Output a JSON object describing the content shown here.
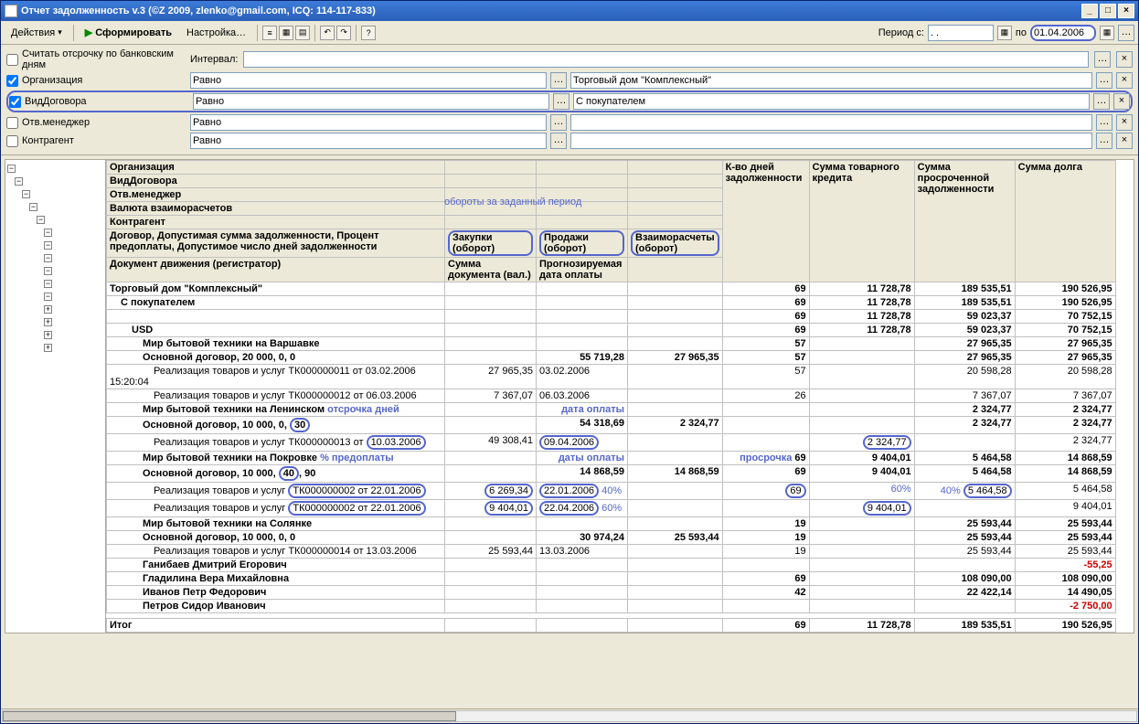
{
  "window": {
    "title": "Отчет задолженность v.3 (©Z 2009, zlenko@gmail.com, ICQ: 114-117-833)"
  },
  "toolbar": {
    "actions": "Действия",
    "form": "Сформировать",
    "settings": "Настройка…",
    "period_label": "Период с:",
    "period_from": ". .",
    "period_to": "01.04.2006"
  },
  "filters": {
    "bankdays": "Считать отсрочку по банковским дням",
    "interval": "Интервал:",
    "org": {
      "label": "Организация",
      "op": "Равно",
      "val": "Торговый дом \"Комплексный\""
    },
    "contract": {
      "label": "ВидДоговора",
      "op": "Равно",
      "val": "С покупателем"
    },
    "manager": {
      "label": "Отв.менеджер",
      "op": "Равно",
      "val": ""
    },
    "counter": {
      "label": "Контрагент",
      "op": "Равно",
      "val": ""
    }
  },
  "headers": {
    "h1": "Организация",
    "h2": "ВидДоговора",
    "h3": "Отв.менеджер",
    "h4": "Валюта взаиморасчетов",
    "h5": "Контрагент",
    "h6": "Договор, Допустимая сумма задолженности, Процент предоплаты, Допустимое число дней задолженности",
    "h7": "Документ движения (регистратор)",
    "c1": "Закупки (оборот)",
    "c2": "Продажи (оборот)",
    "c3": "Взаиморасчеты (оборот)",
    "c4": "Сумма документа (вал.)",
    "c5": "Прогнозируемая дата оплаты",
    "d1": "К-во дней задолженности",
    "d2": "Сумма товарного кредита",
    "d3": "Сумма просроченной задолженности",
    "d4": "Сумма долга"
  },
  "annotations": {
    "oboroty": "обороты за заданный период",
    "otsrochka": "отсрочка дней",
    "data_oplaty": "дата оплаты",
    "daty_oplaty": "даты оплаты",
    "predoplata": "% предоплаты",
    "prosrochka": "просрочка",
    "p40": "40%",
    "p60": "60%",
    "p60b": "60%",
    "p40b": "40%"
  },
  "rows": [
    {
      "ind": 0,
      "b": 1,
      "desc": "Торговый дом \"Комплексный\"",
      "d": "69",
      "s": "11 728,78",
      "p": "189 535,51",
      "t": "190 526,95"
    },
    {
      "ind": 1,
      "b": 1,
      "desc": "С покупателем",
      "d": "69",
      "s": "11 728,78",
      "p": "189 535,51",
      "t": "190 526,95"
    },
    {
      "ind": 2,
      "b": 1,
      "desc": "",
      "d": "69",
      "s": "11 728,78",
      "p": "59 023,37",
      "t": "70 752,15"
    },
    {
      "ind": 2,
      "b": 1,
      "desc": "USD",
      "d": "69",
      "s": "11 728,78",
      "p": "59 023,37",
      "t": "70 752,15"
    },
    {
      "ind": 3,
      "b": 1,
      "desc": "Мир бытовой техники на Варшавке",
      "d": "57",
      "s": "",
      "p": "27 965,35",
      "t": "27 965,35"
    },
    {
      "ind": 3,
      "b": 1,
      "desc": "Основной договор, 20 000, 0, 0",
      "c2": "55 719,28",
      "c3": "27 965,35",
      "d": "57",
      "s": "",
      "p": "27 965,35",
      "t": "27 965,35"
    },
    {
      "ind": 4,
      "b": 0,
      "desc": "Реализация товаров и услуг ТК000000011 от 03.02.2006 15:20:04",
      "c1": "27 965,35",
      "c2": "03.02.2006",
      "d": "57",
      "s": "",
      "p": "20 598,28",
      "t": "20 598,28"
    },
    {
      "ind": 4,
      "b": 0,
      "desc": "Реализация товаров и услуг ТК000000012 от 06.03.2006",
      "c1": "7 367,07",
      "c2": "06.03.2006",
      "d": "26",
      "s": "",
      "p": "7 367,07",
      "t": "7 367,07"
    },
    {
      "ind": 3,
      "b": 1,
      "desc": "Мир бытовой техники на Ленинском",
      "d": "",
      "s": "",
      "p": "2 324,77",
      "t": "2 324,77",
      "an_after": "otsrochka",
      "an2": "data_oplaty"
    },
    {
      "ind": 3,
      "b": 1,
      "desc": "Основной договор, 10 000, 0, ",
      "circ1": "30",
      "c2": "54 318,69",
      "c3": "2 324,77",
      "d": "",
      "s": "",
      "p": "2 324,77",
      "t": "2 324,77"
    },
    {
      "ind": 4,
      "b": 0,
      "desc": "Реализация товаров и услуг ТК000000013 от ",
      "circ_date": "10.03.2006",
      "c1": "49 308,41",
      "c2": "09.04.2006",
      "c2_circ": 1,
      "d": "",
      "s": "2 324,77",
      "s_circ": 1,
      "p": "",
      "t": "2 324,77"
    },
    {
      "ind": 3,
      "b": 1,
      "desc": "Мир бытовой техники на Покровке",
      "an_after": "predoplata",
      "an2": "daty_oplaty",
      "d": "69",
      "s": "9 404,01",
      "p": "5 464,58",
      "t": "14 868,59",
      "an_d": "prosrochka"
    },
    {
      "ind": 3,
      "b": 1,
      "desc": "Основной договор, 10 000, ",
      "circ1": "40",
      "desc2": ", 90",
      "c2": "14 868,59",
      "c3": "14 868,59",
      "d": "69",
      "s": "9 404,01",
      "p": "5 464,58",
      "t": "14 868,59"
    },
    {
      "ind": 4,
      "b": 0,
      "desc": "Реализация товаров и услуг ",
      "circ_doc": "ТК000000002 от 22.01.2006",
      "c1": "6 269,34",
      "c1_circ": 1,
      "c2": "22.01.2006",
      "c2_circ": 1,
      "d": "69",
      "d_circ": 1,
      "s": "",
      "p": "5 464,58",
      "p_circ": 1,
      "t": "5 464,58",
      "an_c2": "p40",
      "an_s": "p60",
      "an_p": "p40b"
    },
    {
      "ind": 4,
      "b": 0,
      "desc": "Реализация товаров и услуг ",
      "circ_doc": "ТК000000002 от 22.01.2006",
      "c1": "9 404,01",
      "c1_circ": 1,
      "c2": "22.04.2006",
      "c2_circ": 1,
      "d": "",
      "s": "9 404,01",
      "s_circ": 1,
      "p": "",
      "t": "9 404,01",
      "an_c2": "p60b"
    },
    {
      "ind": 3,
      "b": 1,
      "desc": "Мир бытовой техники на Солянке",
      "d": "19",
      "s": "",
      "p": "25 593,44",
      "t": "25 593,44"
    },
    {
      "ind": 3,
      "b": 1,
      "desc": "Основной договор, 10 000, 0, 0",
      "c2": "30 974,24",
      "c3": "25 593,44",
      "d": "19",
      "s": "",
      "p": "25 593,44",
      "t": "25 593,44"
    },
    {
      "ind": 4,
      "b": 0,
      "desc": "Реализация товаров и услуг ТК000000014 от 13.03.2006",
      "c1": "25 593,44",
      "c2": "13.03.2006",
      "d": "19",
      "s": "",
      "p": "25 593,44",
      "t": "25 593,44"
    },
    {
      "ind": 3,
      "b": 1,
      "desc": "Ганибаев Дмитрий Егорович",
      "d": "",
      "s": "",
      "p": "",
      "t": "-55,25",
      "neg": 1
    },
    {
      "ind": 3,
      "b": 1,
      "desc": "Гладилина Вера Михайловна",
      "d": "69",
      "s": "",
      "p": "108 090,00",
      "t": "108 090,00"
    },
    {
      "ind": 3,
      "b": 1,
      "desc": "Иванов Петр Федорович",
      "d": "42",
      "s": "",
      "p": "22 422,14",
      "t": "14 490,05"
    },
    {
      "ind": 3,
      "b": 1,
      "desc": "Петров Сидор Иванович",
      "d": "",
      "s": "",
      "p": "",
      "t": "-2 750,00",
      "neg": 1
    }
  ],
  "total": {
    "label": "Итог",
    "d": "69",
    "s": "11 728,78",
    "p": "189 535,51",
    "t": "190 526,95"
  },
  "tree": [
    "−",
    "−",
    "−",
    "−",
    "−",
    "−",
    "−",
    "−",
    "−",
    "−",
    "−",
    "+",
    "+",
    "+",
    "+"
  ]
}
